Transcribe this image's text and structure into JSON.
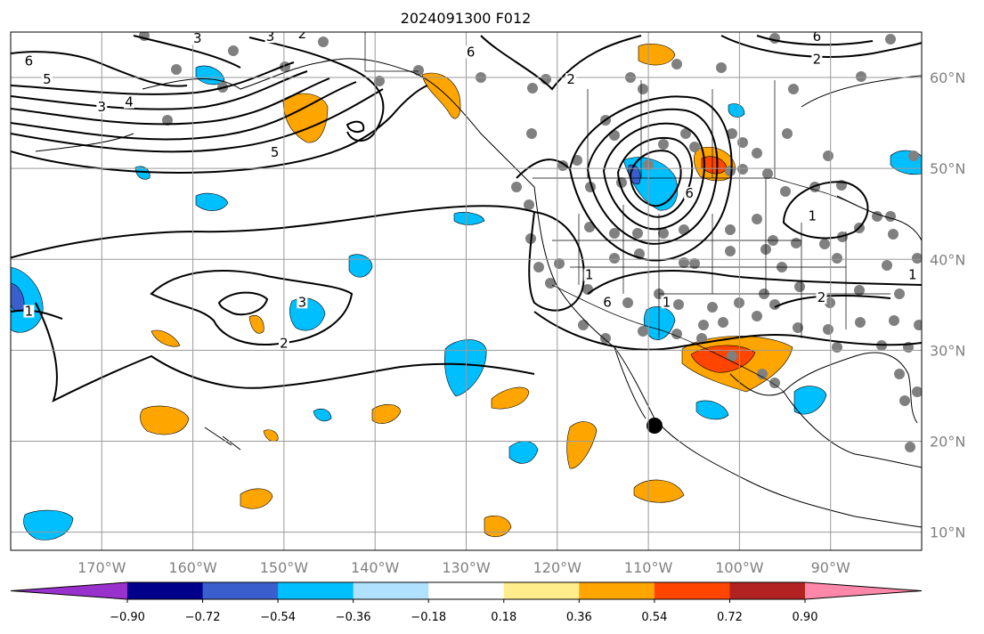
{
  "title": "2024091300 F012",
  "map": {
    "lon_range": [
      -180,
      -80
    ],
    "lat_range": [
      8,
      65
    ],
    "lon_ticks": [
      {
        "value": -170,
        "label": "170°W"
      },
      {
        "value": -160,
        "label": "160°W"
      },
      {
        "value": -150,
        "label": "150°W"
      },
      {
        "value": -140,
        "label": "140°W"
      },
      {
        "value": -130,
        "label": "130°W"
      },
      {
        "value": -120,
        "label": "120°W"
      },
      {
        "value": -110,
        "label": "110°W"
      },
      {
        "value": -100,
        "label": "100°W"
      },
      {
        "value": -90,
        "label": "90°W"
      }
    ],
    "lat_ticks": [
      {
        "value": 60,
        "label": "60°N"
      },
      {
        "value": 50,
        "label": "50°N"
      },
      {
        "value": 40,
        "label": "40°N"
      },
      {
        "value": 30,
        "label": "30°N"
      },
      {
        "value": 20,
        "label": "20°N"
      },
      {
        "value": 10,
        "label": "10°N"
      }
    ],
    "grid": true,
    "contour_labels": [
      {
        "text": "6",
        "lon": -178,
        "lat": 61.5
      },
      {
        "text": "5",
        "lon": -176,
        "lat": 59.5
      },
      {
        "text": "3",
        "lon": -170,
        "lat": 56.5
      },
      {
        "text": "4",
        "lon": -167,
        "lat": 57
      },
      {
        "text": "5",
        "lon": -151,
        "lat": 51.5
      },
      {
        "text": "3",
        "lon": -159.5,
        "lat": 64
      },
      {
        "text": "3",
        "lon": -151.5,
        "lat": 64.2
      },
      {
        "text": "2",
        "lon": -148,
        "lat": 64.5
      },
      {
        "text": "6",
        "lon": -129.5,
        "lat": 62.5
      },
      {
        "text": "2",
        "lon": -118.5,
        "lat": 59.5
      },
      {
        "text": "6",
        "lon": -105.5,
        "lat": 47
      },
      {
        "text": "1",
        "lon": -116.5,
        "lat": 38
      },
      {
        "text": "1",
        "lon": -108,
        "lat": 35
      },
      {
        "text": "6",
        "lon": -114.5,
        "lat": 35
      },
      {
        "text": "3",
        "lon": -148,
        "lat": 35
      },
      {
        "text": "2",
        "lon": -150,
        "lat": 30.5
      },
      {
        "text": "1",
        "lon": -178,
        "lat": 34
      },
      {
        "text": "1",
        "lon": -92,
        "lat": 44.5
      },
      {
        "text": "1",
        "lon": -81,
        "lat": 38
      },
      {
        "text": "2",
        "lon": -91,
        "lat": 35.5
      },
      {
        "text": "6",
        "lon": -91.5,
        "lat": 64.2
      },
      {
        "text": "2",
        "lon": -91.5,
        "lat": 61.7
      }
    ]
  },
  "colorbar": {
    "colors": [
      "#9932cc",
      "#00008b",
      "#3a5fcd",
      "#00bfff",
      "#b0e2ff",
      "#ffffff",
      "#ffec8b",
      "#ffa500",
      "#ff4500",
      "#b22222",
      "#ff88aa"
    ],
    "tick_labels": [
      "−0.90",
      "−0.72",
      "−0.54",
      "−0.36",
      "−0.18",
      "0.18",
      "0.36",
      "0.54",
      "0.72",
      "0.90"
    ]
  }
}
